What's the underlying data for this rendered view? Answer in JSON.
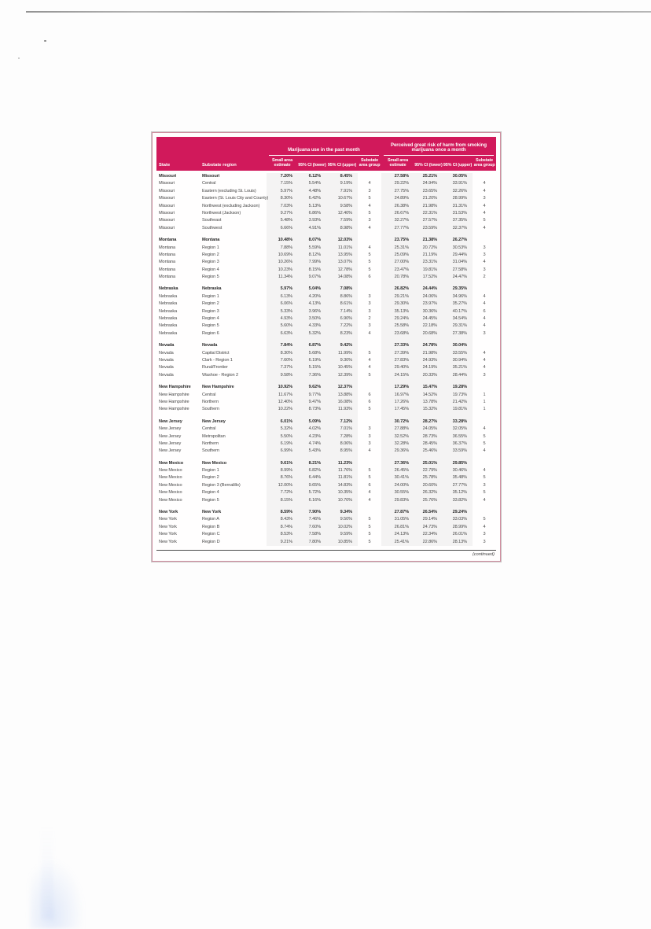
{
  "colors": {
    "header_bg": "#d1195b",
    "table_border": "#cf8fa0"
  },
  "table": {
    "col_state": "State",
    "col_region": "Substate region",
    "title_group_1": "Marijuana use in the past month",
    "title_group_2": "Perceived great risk of harm from smoking marijuana once a month",
    "subcols": [
      "Small area estimate",
      "95% CI (lower)",
      "95% CI (upper)",
      "Substate area group"
    ],
    "footer_note": "(continued)",
    "groups": [
      {
        "rows": [
          {
            "bold": true,
            "state": "Missouri",
            "region": "Missouri",
            "c": [
              "7.20%",
              "6.12%",
              "8.45%",
              "",
              "27.58%",
              "25.21%",
              "30.05%",
              ""
            ]
          },
          {
            "bold": false,
            "state": "Missouri",
            "region": "Central",
            "c": [
              "7.15%",
              "5.54%",
              "9.19%",
              "4",
              "29.22%",
              "24.94%",
              "33.91%",
              "4"
            ]
          },
          {
            "bold": false,
            "state": "Missouri",
            "region": "Eastern (excluding St. Louis)",
            "c": [
              "5.97%",
              "4.48%",
              "7.91%",
              "3",
              "27.75%",
              "23.65%",
              "32.26%",
              "4"
            ]
          },
          {
            "bold": false,
            "state": "Missouri",
            "region": "Eastern (St. Louis City and County)",
            "c": [
              "8.30%",
              "6.42%",
              "10.67%",
              "5",
              "24.89%",
              "21.20%",
              "28.99%",
              "3"
            ]
          },
          {
            "bold": false,
            "state": "Missouri",
            "region": "Northwest (excluding Jackson)",
            "c": [
              "7.03%",
              "5.13%",
              "9.58%",
              "4",
              "26.38%",
              "21.98%",
              "31.31%",
              "4"
            ]
          },
          {
            "bold": false,
            "state": "Missouri",
            "region": "Northwest (Jackson)",
            "c": [
              "9.27%",
              "6.86%",
              "12.40%",
              "5",
              "26.67%",
              "22.31%",
              "31.53%",
              "4"
            ]
          },
          {
            "bold": false,
            "state": "Missouri",
            "region": "Southeast",
            "c": [
              "5.48%",
              "3.93%",
              "7.59%",
              "3",
              "32.27%",
              "27.57%",
              "37.35%",
              "5"
            ]
          },
          {
            "bold": false,
            "state": "Missouri",
            "region": "Southwest",
            "c": [
              "6.66%",
              "4.91%",
              "8.98%",
              "4",
              "27.77%",
              "23.59%",
              "32.37%",
              "4"
            ]
          }
        ]
      },
      {
        "rows": [
          {
            "bold": true,
            "state": "Montana",
            "region": "Montana",
            "c": [
              "10.48%",
              "8.07%",
              "12.03%",
              "",
              "23.75%",
              "21.38%",
              "26.27%",
              ""
            ]
          },
          {
            "bold": false,
            "state": "Montana",
            "region": "Region 1",
            "c": [
              "7.88%",
              "5.59%",
              "11.01%",
              "4",
              "25.31%",
              "20.72%",
              "30.53%",
              "3"
            ]
          },
          {
            "bold": false,
            "state": "Montana",
            "region": "Region 2",
            "c": [
              "10.69%",
              "8.12%",
              "13.95%",
              "5",
              "25.09%",
              "21.19%",
              "29.44%",
              "3"
            ]
          },
          {
            "bold": false,
            "state": "Montana",
            "region": "Region 3",
            "c": [
              "10.26%",
              "7.99%",
              "13.07%",
              "5",
              "27.00%",
              "23.31%",
              "31.04%",
              "4"
            ]
          },
          {
            "bold": false,
            "state": "Montana",
            "region": "Region 4",
            "c": [
              "10.23%",
              "8.15%",
              "12.78%",
              "5",
              "23.47%",
              "19.81%",
              "27.58%",
              "3"
            ]
          },
          {
            "bold": false,
            "state": "Montana",
            "region": "Region 5",
            "c": [
              "11.34%",
              "9.07%",
              "14.08%",
              "6",
              "20.78%",
              "17.52%",
              "24.47%",
              "2"
            ]
          }
        ]
      },
      {
        "rows": [
          {
            "bold": true,
            "state": "Nebraska",
            "region": "Nebraska",
            "c": [
              "5.97%",
              "5.04%",
              "7.08%",
              "",
              "26.82%",
              "24.44%",
              "29.35%",
              ""
            ]
          },
          {
            "bold": false,
            "state": "Nebraska",
            "region": "Region 1",
            "c": [
              "6.13%",
              "4.20%",
              "8.86%",
              "3",
              "29.21%",
              "24.06%",
              "34.96%",
              "4"
            ]
          },
          {
            "bold": false,
            "state": "Nebraska",
            "region": "Region 2",
            "c": [
              "6.06%",
              "4.13%",
              "8.61%",
              "3",
              "29.30%",
              "23.97%",
              "35.27%",
              "4"
            ]
          },
          {
            "bold": false,
            "state": "Nebraska",
            "region": "Region 3",
            "c": [
              "5.33%",
              "3.96%",
              "7.14%",
              "3",
              "35.13%",
              "30.36%",
              "40.17%",
              "6"
            ]
          },
          {
            "bold": false,
            "state": "Nebraska",
            "region": "Region 4",
            "c": [
              "4.93%",
              "3.50%",
              "6.90%",
              "2",
              "29.24%",
              "24.45%",
              "34.54%",
              "4"
            ]
          },
          {
            "bold": false,
            "state": "Nebraska",
            "region": "Region 5",
            "c": [
              "5.60%",
              "4.33%",
              "7.22%",
              "3",
              "25.58%",
              "22.18%",
              "29.31%",
              "4"
            ]
          },
          {
            "bold": false,
            "state": "Nebraska",
            "region": "Region 6",
            "c": [
              "6.63%",
              "5.32%",
              "8.23%",
              "4",
              "23.68%",
              "20.68%",
              "27.38%",
              "3"
            ]
          }
        ]
      },
      {
        "rows": [
          {
            "bold": true,
            "state": "Nevada",
            "region": "Nevada",
            "c": [
              "7.84%",
              "6.87%",
              "9.42%",
              "",
              "27.33%",
              "24.78%",
              "30.04%",
              ""
            ]
          },
          {
            "bold": false,
            "state": "Nevada",
            "region": "Capital District",
            "c": [
              "8.30%",
              "5.68%",
              "11.99%",
              "5",
              "27.39%",
              "21.98%",
              "33.55%",
              "4"
            ]
          },
          {
            "bold": false,
            "state": "Nevada",
            "region": "Clark - Region 1",
            "c": [
              "7.60%",
              "6.19%",
              "9.30%",
              "4",
              "27.83%",
              "24.93%",
              "30.94%",
              "4"
            ]
          },
          {
            "bold": false,
            "state": "Nevada",
            "region": "Rural/Frontier",
            "c": [
              "7.37%",
              "5.15%",
              "10.45%",
              "4",
              "29.40%",
              "24.19%",
              "35.21%",
              "4"
            ]
          },
          {
            "bold": false,
            "state": "Nevada",
            "region": "Washoe - Region 2",
            "c": [
              "9.58%",
              "7.36%",
              "12.39%",
              "5",
              "24.15%",
              "20.33%",
              "28.44%",
              "3"
            ]
          }
        ]
      },
      {
        "rows": [
          {
            "bold": true,
            "state": "New Hampshire",
            "region": "New Hampshire",
            "c": [
              "10.92%",
              "9.62%",
              "12.37%",
              "",
              "17.29%",
              "15.47%",
              "19.28%",
              ""
            ]
          },
          {
            "bold": false,
            "state": "New Hampshire",
            "region": "Central",
            "c": [
              "11.67%",
              "9.77%",
              "13.88%",
              "6",
              "16.97%",
              "14.52%",
              "19.73%",
              "1"
            ]
          },
          {
            "bold": false,
            "state": "New Hampshire",
            "region": "Northern",
            "c": [
              "12.40%",
              "9.47%",
              "16.08%",
              "6",
              "17.26%",
              "13.78%",
              "21.42%",
              "1"
            ]
          },
          {
            "bold": false,
            "state": "New Hampshire",
            "region": "Southern",
            "c": [
              "10.22%",
              "8.73%",
              "11.93%",
              "5",
              "17.45%",
              "15.32%",
              "19.81%",
              "1"
            ]
          }
        ]
      },
      {
        "rows": [
          {
            "bold": true,
            "state": "New Jersey",
            "region": "New Jersey",
            "c": [
              "6.01%",
              "5.09%",
              "7.12%",
              "",
              "30.72%",
              "28.27%",
              "33.28%",
              ""
            ]
          },
          {
            "bold": false,
            "state": "New Jersey",
            "region": "Central",
            "c": [
              "5.32%",
              "4.02%",
              "7.01%",
              "3",
              "27.88%",
              "24.05%",
              "32.05%",
              "4"
            ]
          },
          {
            "bold": false,
            "state": "New Jersey",
            "region": "Metropolitan",
            "c": [
              "5.50%",
              "4.23%",
              "7.28%",
              "3",
              "32.52%",
              "28.73%",
              "36.55%",
              "5"
            ]
          },
          {
            "bold": false,
            "state": "New Jersey",
            "region": "Northern",
            "c": [
              "6.19%",
              "4.74%",
              "8.06%",
              "3",
              "32.28%",
              "28.45%",
              "36.37%",
              "5"
            ]
          },
          {
            "bold": false,
            "state": "New Jersey",
            "region": "Southern",
            "c": [
              "6.99%",
              "5.43%",
              "8.95%",
              "4",
              "29.36%",
              "25.46%",
              "33.59%",
              "4"
            ]
          }
        ]
      },
      {
        "rows": [
          {
            "bold": true,
            "state": "New Mexico",
            "region": "New Mexico",
            "c": [
              "9.61%",
              "8.21%",
              "11.23%",
              "",
              "27.36%",
              "25.01%",
              "29.85%",
              ""
            ]
          },
          {
            "bold": false,
            "state": "New Mexico",
            "region": "Region 1",
            "c": [
              "8.99%",
              "6.82%",
              "11.76%",
              "5",
              "26.45%",
              "22.79%",
              "30.46%",
              "4"
            ]
          },
          {
            "bold": false,
            "state": "New Mexico",
            "region": "Region 2",
            "c": [
              "8.76%",
              "6.44%",
              "11.81%",
              "5",
              "30.41%",
              "25.78%",
              "35.48%",
              "5"
            ]
          },
          {
            "bold": false,
            "state": "New Mexico",
            "region": "Region 3 (Bernalillo)",
            "c": [
              "12.00%",
              "9.65%",
              "14.83%",
              "6",
              "24.00%",
              "20.60%",
              "27.77%",
              "3"
            ]
          },
          {
            "bold": false,
            "state": "New Mexico",
            "region": "Region 4",
            "c": [
              "7.72%",
              "5.72%",
              "10.35%",
              "4",
              "30.55%",
              "26.32%",
              "35.12%",
              "5"
            ]
          },
          {
            "bold": false,
            "state": "New Mexico",
            "region": "Region 5",
            "c": [
              "8.15%",
              "6.16%",
              "10.70%",
              "4",
              "29.83%",
              "25.76%",
              "33.82%",
              "4"
            ]
          }
        ]
      },
      {
        "rows": [
          {
            "bold": true,
            "state": "New York",
            "region": "New York",
            "c": [
              "8.59%",
              "7.90%",
              "9.34%",
              "",
              "27.87%",
              "26.54%",
              "29.24%",
              ""
            ]
          },
          {
            "bold": false,
            "state": "New York",
            "region": "Region A",
            "c": [
              "8.43%",
              "7.46%",
              "9.50%",
              "5",
              "31.05%",
              "29.14%",
              "33.03%",
              "5"
            ]
          },
          {
            "bold": false,
            "state": "New York",
            "region": "Region B",
            "c": [
              "8.74%",
              "7.60%",
              "10.02%",
              "5",
              "26.81%",
              "24.73%",
              "28.99%",
              "4"
            ]
          },
          {
            "bold": false,
            "state": "New York",
            "region": "Region C",
            "c": [
              "8.53%",
              "7.58%",
              "9.59%",
              "5",
              "24.13%",
              "22.34%",
              "26.01%",
              "3"
            ]
          },
          {
            "bold": false,
            "state": "New York",
            "region": "Region D",
            "c": [
              "9.21%",
              "7.80%",
              "10.85%",
              "5",
              "25.41%",
              "22.86%",
              "28.13%",
              "3"
            ]
          }
        ]
      }
    ]
  }
}
